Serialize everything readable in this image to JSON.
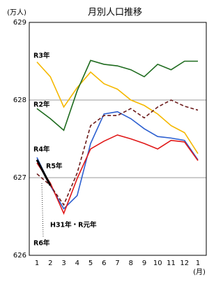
{
  "chart_data": {
    "type": "line",
    "title": "月別人口推移",
    "y_unit": "(万人)",
    "x_unit": "(月)",
    "categories": [
      "1",
      "2",
      "3",
      "4",
      "5",
      "6",
      "7",
      "8",
      "9",
      "10",
      "11",
      "12",
      "1"
    ],
    "ylim": [
      626,
      629
    ],
    "yticks": [
      626,
      627,
      628,
      629
    ],
    "grid": true,
    "series": [
      {
        "name": "R3年",
        "color": "#f5b800",
        "values": [
          628.49,
          628.3,
          627.91,
          628.16,
          628.36,
          628.21,
          628.14,
          628.0,
          627.93,
          627.82,
          627.67,
          627.58,
          627.31
        ]
      },
      {
        "name": "R2年",
        "color": "#1e6b1e",
        "values": [
          627.89,
          627.76,
          627.61,
          628.12,
          628.51,
          628.46,
          628.44,
          628.39,
          628.3,
          628.46,
          628.39,
          628.5,
          628.5
        ]
      },
      {
        "name": "R4年",
        "color": "#2c5fd0",
        "values": [
          627.26,
          626.9,
          626.6,
          626.77,
          627.44,
          627.82,
          627.85,
          627.76,
          627.63,
          627.53,
          627.51,
          627.48,
          627.23
        ]
      },
      {
        "name": "R5年",
        "color": "#e01818",
        "values": [
          627.19,
          626.93,
          626.54,
          626.99,
          627.37,
          627.47,
          627.55,
          627.5,
          627.44,
          627.37,
          627.48,
          627.46,
          627.22
        ]
      },
      {
        "name": "H31年・R元年",
        "color": "#6b1a1a",
        "dashed": true,
        "values": [
          627.05,
          626.9,
          626.65,
          627.06,
          627.67,
          627.8,
          627.8,
          627.89,
          627.77,
          627.91,
          628.0,
          627.92,
          627.87
        ]
      },
      {
        "name": "R6年",
        "color": "#000000",
        "values": [
          627.23,
          626.9,
          null,
          null,
          null,
          null,
          null,
          null,
          null,
          null,
          null,
          null,
          null
        ]
      }
    ]
  }
}
